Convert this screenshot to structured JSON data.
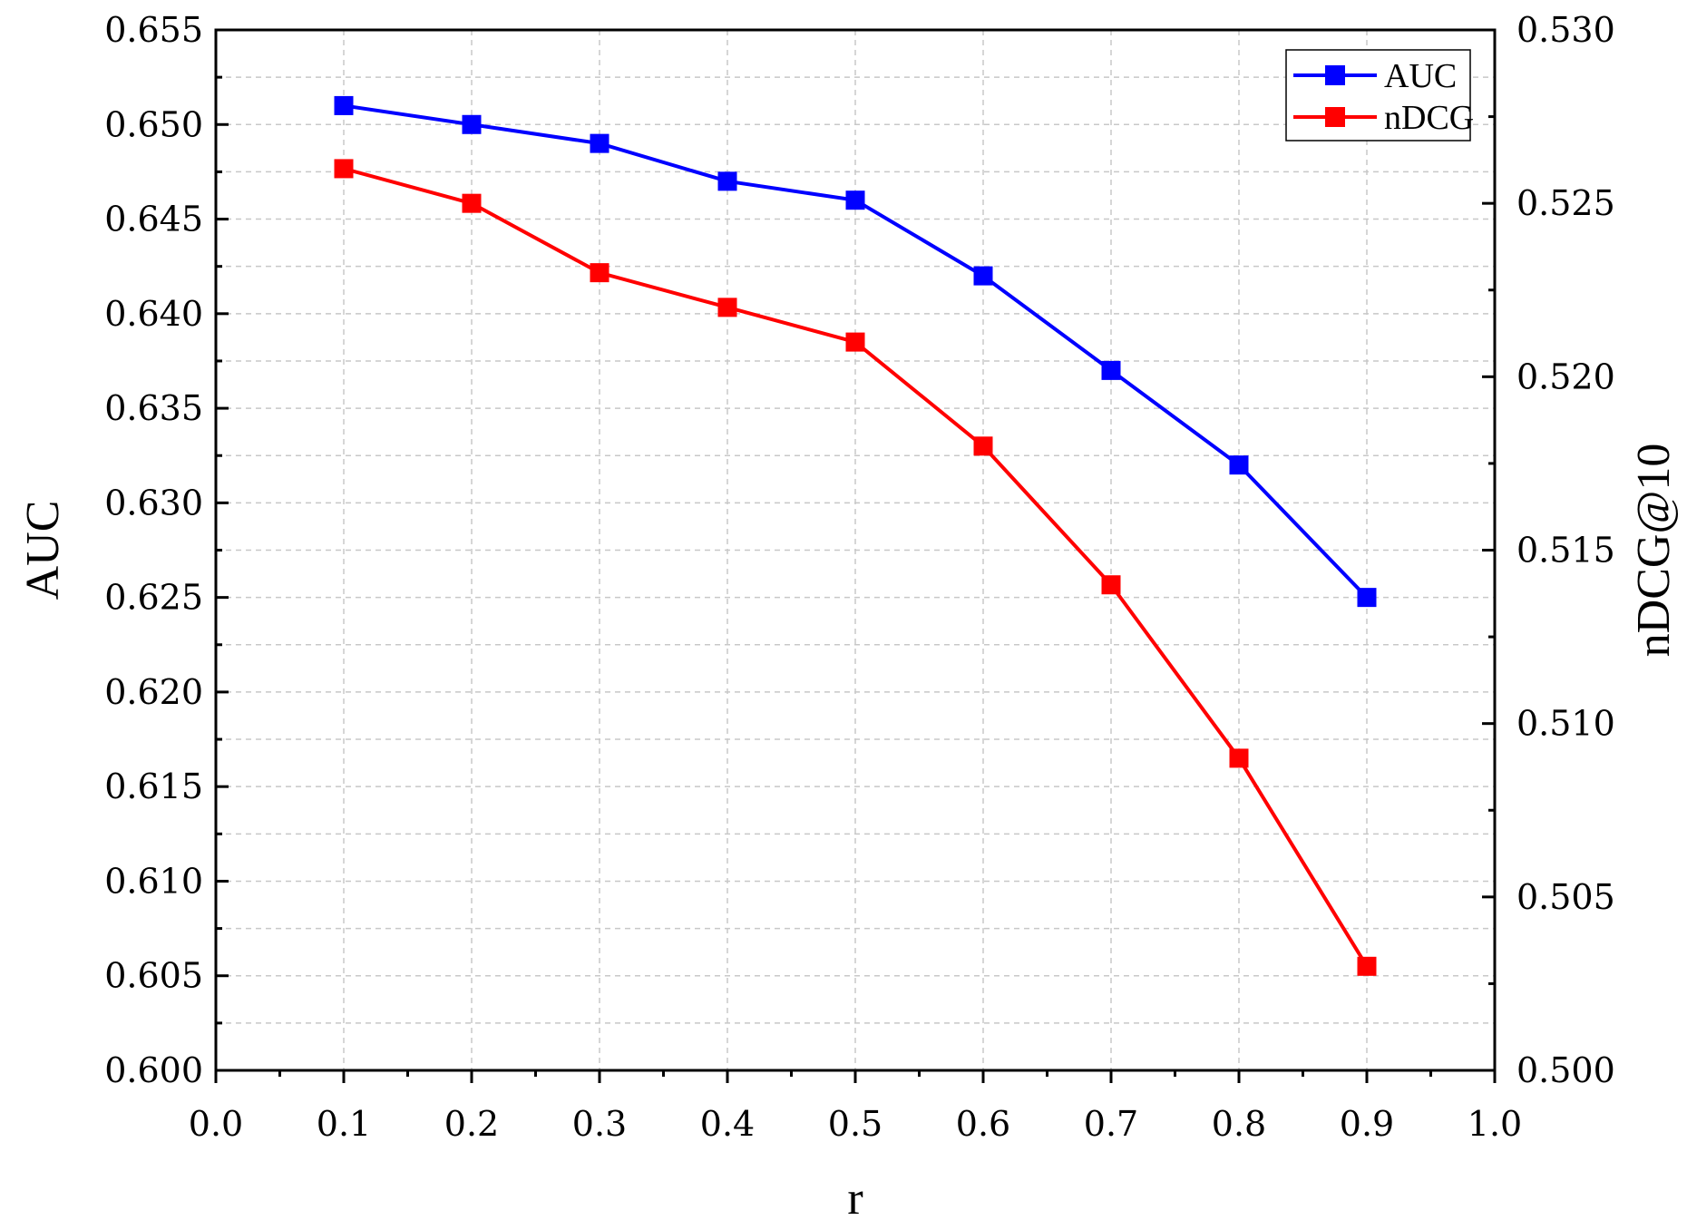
{
  "chart_data": {
    "type": "line",
    "xlabel": "r",
    "ylabel": "AUC",
    "ylabel_right": "nDCG@10",
    "x": [
      0.1,
      0.2,
      0.3,
      0.4,
      0.5,
      0.6,
      0.7,
      0.8,
      0.9
    ],
    "xlim": [
      0.0,
      1.0
    ],
    "x_ticks": [
      0.0,
      0.1,
      0.2,
      0.3,
      0.4,
      0.5,
      0.6,
      0.7,
      0.8,
      0.9,
      1.0
    ],
    "x_tick_labels": [
      "0.0",
      "0.1",
      "0.2",
      "0.3",
      "0.4",
      "0.5",
      "0.6",
      "0.7",
      "0.8",
      "0.9",
      "1.0"
    ],
    "ylim": [
      0.6,
      0.655
    ],
    "y_ticks": [
      0.6,
      0.605,
      0.61,
      0.615,
      0.62,
      0.625,
      0.63,
      0.635,
      0.64,
      0.645,
      0.65,
      0.655
    ],
    "y_tick_labels": [
      "0.600",
      "0.605",
      "0.610",
      "0.615",
      "0.620",
      "0.625",
      "0.630",
      "0.635",
      "0.640",
      "0.645",
      "0.650",
      "0.655"
    ],
    "ylim_right": [
      0.5,
      0.53
    ],
    "y_ticks_right": [
      0.5,
      0.505,
      0.51,
      0.515,
      0.52,
      0.525,
      0.53
    ],
    "y_tick_labels_right": [
      "0.500",
      "0.505",
      "0.510",
      "0.515",
      "0.520",
      "0.525",
      "0.530"
    ],
    "grid": true,
    "legend_position": "top-right",
    "series": [
      {
        "name": "AUC",
        "axis": "left",
        "color": "#0000ff",
        "marker": "square",
        "values": [
          0.651,
          0.65,
          0.649,
          0.647,
          0.646,
          0.642,
          0.637,
          0.632,
          0.625
        ]
      },
      {
        "name": "nDCG",
        "axis": "right",
        "color": "#ff0000",
        "marker": "square",
        "values": [
          0.526,
          0.525,
          0.523,
          0.522,
          0.521,
          0.518,
          0.514,
          0.509,
          0.503
        ]
      }
    ]
  }
}
